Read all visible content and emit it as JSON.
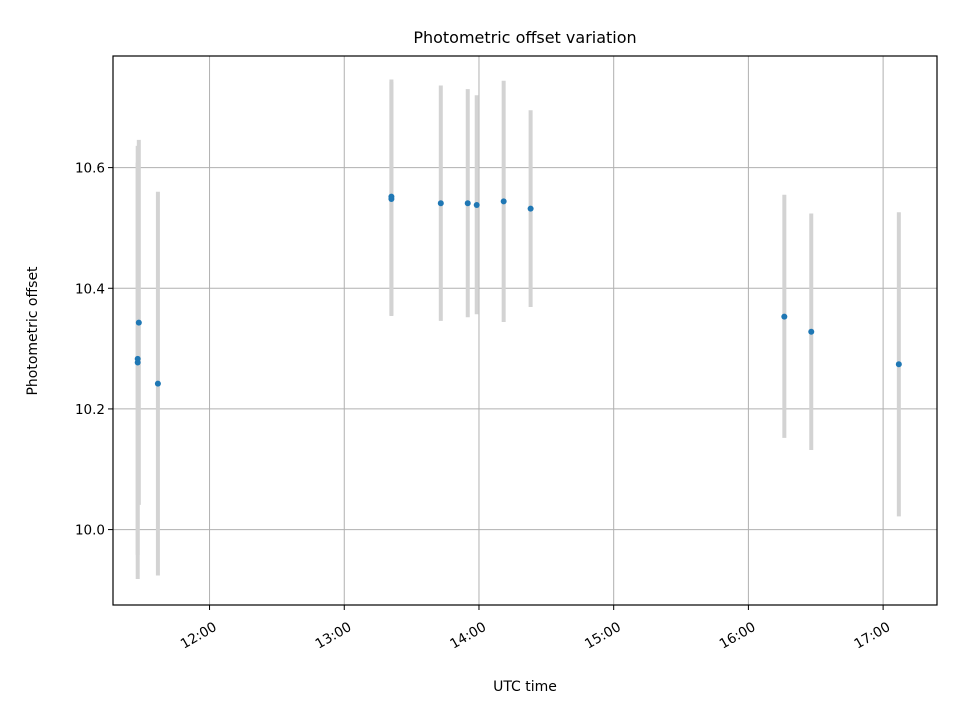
{
  "chart_data": {
    "type": "scatter",
    "title": "Photometric offset variation",
    "xlabel": "UTC time",
    "ylabel": "Photometric offset",
    "x_type": "time",
    "xlim": [
      "11:17",
      "17:24"
    ],
    "ylim": [
      9.875,
      10.785
    ],
    "x_ticks": [
      "12:00",
      "13:00",
      "14:00",
      "15:00",
      "16:00",
      "17:00"
    ],
    "y_ticks": [
      {
        "value": 10.0,
        "label": "10.0"
      },
      {
        "value": 10.2,
        "label": "10.2"
      },
      {
        "value": 10.4,
        "label": "10.4"
      },
      {
        "value": 10.6,
        "label": "10.6"
      }
    ],
    "grid": true,
    "colors": {
      "points": "#1f77b4",
      "errorbars": "#d3d3d3",
      "grid": "#b0b0b0"
    },
    "points": [
      {
        "x": "11:28",
        "y": 10.277,
        "err_low": 9.918,
        "err_high": 10.636
      },
      {
        "x": "11:28",
        "y": 10.283,
        "err_low": 9.958,
        "err_high": 10.608
      },
      {
        "x": "11:28.5",
        "y": 10.343,
        "err_low": 10.041,
        "err_high": 10.646
      },
      {
        "x": "11:37",
        "y": 10.242,
        "err_low": 9.924,
        "err_high": 10.56
      },
      {
        "x": "13:21",
        "y": 10.548,
        "err_low": 10.354,
        "err_high": 10.742
      },
      {
        "x": "13:21",
        "y": 10.552,
        "err_low": 10.356,
        "err_high": 10.746
      },
      {
        "x": "13:43",
        "y": 10.541,
        "err_low": 10.346,
        "err_high": 10.736
      },
      {
        "x": "13:55",
        "y": 10.541,
        "err_low": 10.352,
        "err_high": 10.73
      },
      {
        "x": "13:59",
        "y": 10.538,
        "err_low": 10.357,
        "err_high": 10.72
      },
      {
        "x": "14:11",
        "y": 10.544,
        "err_low": 10.344,
        "err_high": 10.744
      },
      {
        "x": "14:23",
        "y": 10.532,
        "err_low": 10.369,
        "err_high": 10.695
      },
      {
        "x": "16:16",
        "y": 10.353,
        "err_low": 10.152,
        "err_high": 10.555
      },
      {
        "x": "16:28",
        "y": 10.328,
        "err_low": 10.132,
        "err_high": 10.524
      },
      {
        "x": "17:07",
        "y": 10.274,
        "err_low": 10.022,
        "err_high": 10.526
      }
    ]
  }
}
